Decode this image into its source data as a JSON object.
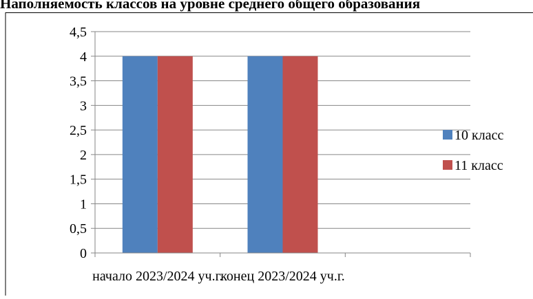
{
  "title": "Наполняемость классов на уровне среднего общего образования",
  "chart_data": {
    "type": "bar",
    "title": "Наполняемость классов на уровне среднего общего образования",
    "categories": [
      "начало 2023/2024 уч.г.",
      "конец 2023/2024 уч.г."
    ],
    "series": [
      {
        "name": "10 класс",
        "values": [
          4,
          4
        ],
        "color": "#4F81BD"
      },
      {
        "name": "11 класс",
        "values": [
          4,
          4
        ],
        "color": "#C0504D"
      }
    ],
    "ylim": [
      0,
      4.5
    ],
    "yticks": [
      "0",
      "0,5",
      "1",
      "1,5",
      "2",
      "2,5",
      "3",
      "3,5",
      "4",
      "4,5"
    ],
    "grid": true,
    "legend": "right",
    "xlabel": "",
    "ylabel": ""
  }
}
